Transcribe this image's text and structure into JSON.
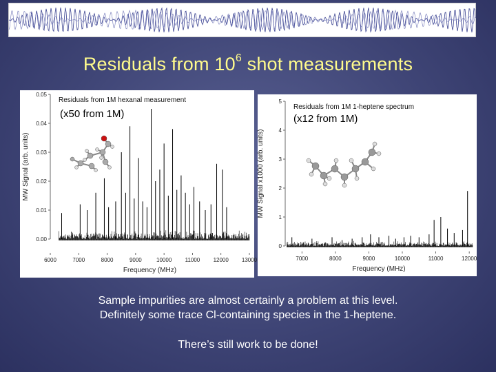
{
  "title": {
    "text": "Residuals from 10",
    "superscript": "6",
    "text_after": " shot measurements"
  },
  "charts": [
    {
      "plot_title": "Residuals from 1M hexanal measurement",
      "scale_label": "(x50 from 1M)",
      "xlabel": "Frequency (MHz)",
      "ylabel": "MW Signal (arb. units)",
      "xticks": [
        "6000",
        "7000",
        "8000",
        "9000",
        "10000",
        "11000",
        "12000",
        "13000"
      ],
      "yticks": [
        "0.00",
        "0.01",
        "0.02",
        "0.03",
        "0.04",
        "0.05"
      ]
    },
    {
      "plot_title": "Residuals from 1M 1-heptene spectrum",
      "scale_label": "(x12 from 1M)",
      "xlabel": "Frequency (MHz)",
      "ylabel": "MW Signal x1000 (arb. units)",
      "xticks": [
        "7000",
        "8000",
        "9000",
        "10000",
        "11000",
        "12000"
      ],
      "yticks": [
        "0",
        "1",
        "2",
        "3",
        "4",
        "5"
      ]
    }
  ],
  "chart_data": [
    {
      "type": "line",
      "title": "Residuals from 1M hexanal measurement",
      "xlabel": "Frequency (MHz)",
      "ylabel": "MW Signal (arb. units)",
      "xlim": [
        6000,
        13000
      ],
      "ylim": [
        0.0,
        0.05
      ],
      "baseline": 0.0,
      "peaks": [
        {
          "x": 6400,
          "y": 0.009
        },
        {
          "x": 7050,
          "y": 0.012
        },
        {
          "x": 7300,
          "y": 0.01
        },
        {
          "x": 7600,
          "y": 0.016
        },
        {
          "x": 7900,
          "y": 0.021
        },
        {
          "x": 8050,
          "y": 0.011
        },
        {
          "x": 8300,
          "y": 0.013
        },
        {
          "x": 8500,
          "y": 0.03
        },
        {
          "x": 8650,
          "y": 0.016
        },
        {
          "x": 8800,
          "y": 0.039
        },
        {
          "x": 8950,
          "y": 0.014
        },
        {
          "x": 9100,
          "y": 0.028
        },
        {
          "x": 9250,
          "y": 0.013
        },
        {
          "x": 9400,
          "y": 0.011
        },
        {
          "x": 9550,
          "y": 0.045
        },
        {
          "x": 9700,
          "y": 0.02
        },
        {
          "x": 9850,
          "y": 0.024
        },
        {
          "x": 10000,
          "y": 0.033
        },
        {
          "x": 10150,
          "y": 0.015
        },
        {
          "x": 10300,
          "y": 0.038
        },
        {
          "x": 10450,
          "y": 0.017
        },
        {
          "x": 10600,
          "y": 0.022
        },
        {
          "x": 10750,
          "y": 0.016
        },
        {
          "x": 10900,
          "y": 0.012
        },
        {
          "x": 11050,
          "y": 0.018
        },
        {
          "x": 11250,
          "y": 0.013
        },
        {
          "x": 11450,
          "y": 0.01
        },
        {
          "x": 11650,
          "y": 0.012
        },
        {
          "x": 11850,
          "y": 0.026
        },
        {
          "x": 12050,
          "y": 0.024
        },
        {
          "x": 12200,
          "y": 0.011
        }
      ]
    },
    {
      "type": "line",
      "title": "Residuals from 1M 1-heptene spectrum",
      "xlabel": "Frequency (MHz)",
      "ylabel": "MW Signal x1000 (arb. units)",
      "xlim": [
        6500,
        12100
      ],
      "ylim": [
        0,
        5
      ],
      "baseline": 0.0,
      "peaks": [
        {
          "x": 6700,
          "y": 0.3
        },
        {
          "x": 7300,
          "y": 0.25
        },
        {
          "x": 7900,
          "y": 0.3
        },
        {
          "x": 8200,
          "y": 0.2
        },
        {
          "x": 8500,
          "y": 0.25
        },
        {
          "x": 8800,
          "y": 0.3
        },
        {
          "x": 9050,
          "y": 0.4
        },
        {
          "x": 9300,
          "y": 0.3
        },
        {
          "x": 9600,
          "y": 0.35
        },
        {
          "x": 9800,
          "y": 0.25
        },
        {
          "x": 10050,
          "y": 0.3
        },
        {
          "x": 10250,
          "y": 0.35
        },
        {
          "x": 10500,
          "y": 0.3
        },
        {
          "x": 10800,
          "y": 0.4
        },
        {
          "x": 10950,
          "y": 0.9
        },
        {
          "x": 11150,
          "y": 1.0
        },
        {
          "x": 11350,
          "y": 0.6
        },
        {
          "x": 11550,
          "y": 0.45
        },
        {
          "x": 11800,
          "y": 0.55
        },
        {
          "x": 11950,
          "y": 1.9
        }
      ]
    }
  ],
  "caption": {
    "line1": "Sample impurities are almost certainly a problem at this level.",
    "line2": "Definitely some trace Cl-containing species in the 1-heptene.",
    "line3": "There’s still work to be done!"
  }
}
